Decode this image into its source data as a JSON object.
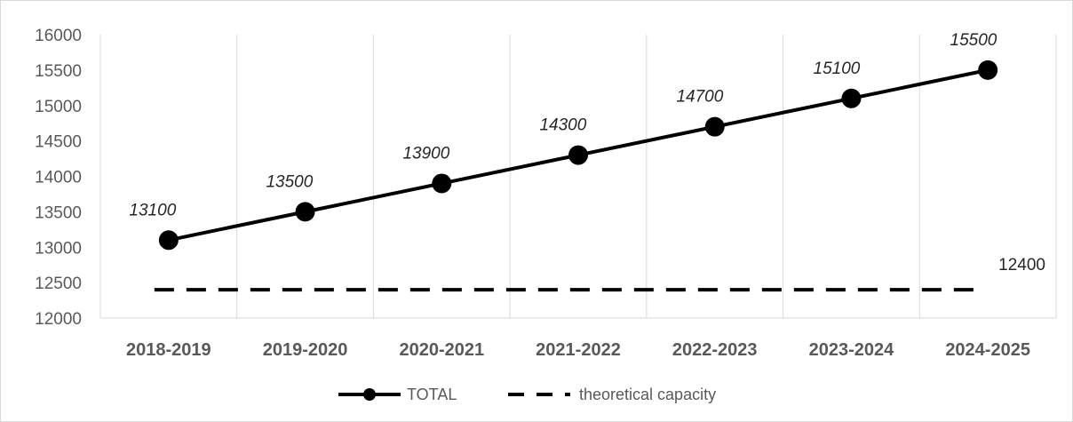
{
  "chart_data": {
    "type": "line",
    "categories": [
      "2018-2019",
      "2019-2020",
      "2020-2021",
      "2021-2022",
      "2022-2023",
      "2023-2024",
      "2024-2025"
    ],
    "series": [
      {
        "name": "TOTAL",
        "values": [
          13100,
          13500,
          13900,
          14300,
          14700,
          15100,
          15500
        ],
        "style": "solid-markers",
        "color": "#000000"
      },
      {
        "name": "theoretical capacity",
        "values": [
          12400,
          12400,
          12400,
          12400,
          12400,
          12400,
          12400
        ],
        "style": "dashed",
        "color": "#000000"
      }
    ],
    "data_labels": {
      "total": [
        "13100",
        "13500",
        "13900",
        "14300",
        "14700",
        "15100",
        "15500"
      ],
      "capacity": "12400"
    },
    "yticks": [
      "12000",
      "12500",
      "13000",
      "13500",
      "14000",
      "14500",
      "15000",
      "15500",
      "16000"
    ],
    "ylim": [
      12000,
      16000
    ],
    "grid": "vertical",
    "legend": "bottom",
    "title": "",
    "xlabel": "",
    "ylabel": ""
  }
}
